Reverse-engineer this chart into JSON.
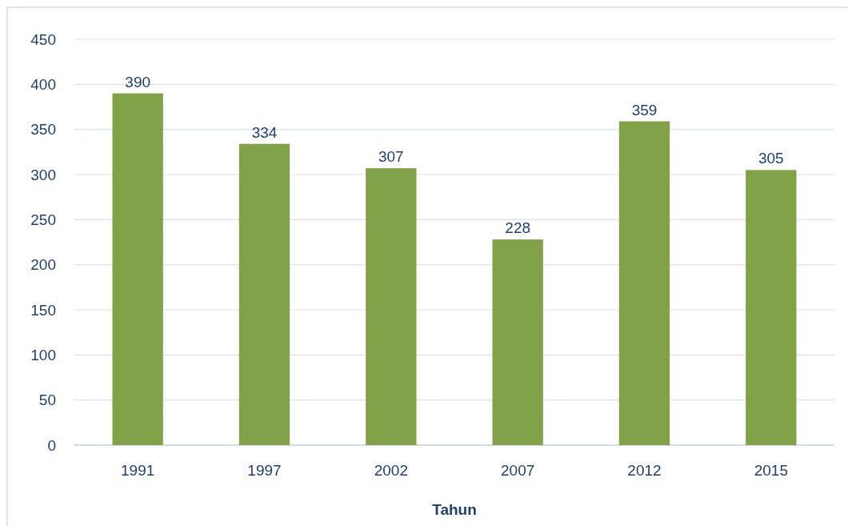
{
  "chart_data": {
    "type": "bar",
    "xlabel": "Tahun",
    "categories": [
      "1991",
      "1997",
      "2002",
      "2007",
      "2012",
      "2015"
    ],
    "values": [
      390,
      334,
      307,
      228,
      359,
      305
    ],
    "color": "#82a24a",
    "ylim": [
      0,
      450
    ],
    "yticks": [
      0,
      50,
      100,
      150,
      200,
      250,
      300,
      350,
      400,
      450
    ],
    "grid": "y",
    "data_labels": true
  }
}
